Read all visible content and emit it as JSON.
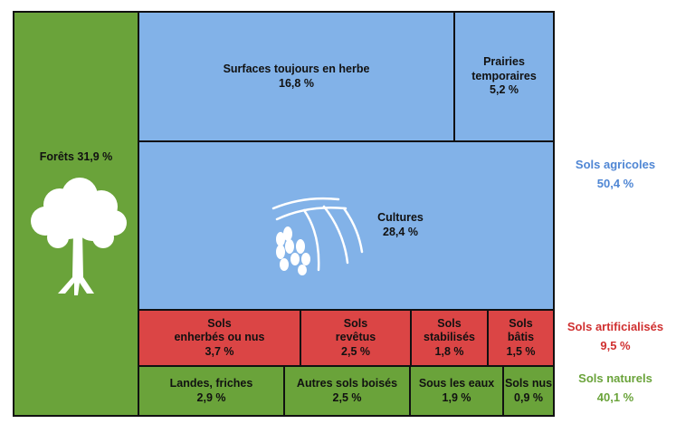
{
  "colors": {
    "forest": "#6aa33a",
    "agri": "#82b2e8",
    "artif": "#db4545",
    "natural_text": "#6aa33a",
    "agri_text": "#4f86d4",
    "artif_text": "#d03030"
  },
  "icons": {
    "tree": "tree-icon",
    "crops": "wheat-field-icon"
  },
  "chart_data": {
    "type": "treemap",
    "unit": "%",
    "cells": [
      {
        "label": "Forêts",
        "value": 31.9,
        "value_text": "Forêts 31,9 %",
        "group": "forests"
      },
      {
        "label": "Surfaces toujours en herbe",
        "value": 16.8,
        "value_text": "16,8 %",
        "group": "agricultural"
      },
      {
        "label": "Prairies\ntemporaires",
        "value": 5.2,
        "value_text": "5,2 %",
        "group": "agricultural"
      },
      {
        "label": "Cultures",
        "value": 28.4,
        "value_text": "28,4 %",
        "group": "agricultural"
      },
      {
        "label": "Sols\nenherbés ou nus",
        "value": 3.7,
        "value_text": "3,7 %",
        "group": "artificial"
      },
      {
        "label": "Sols\nrevêtus",
        "value": 2.5,
        "value_text": "2,5 %",
        "group": "artificial"
      },
      {
        "label": "Sols\nstabilisés",
        "value": 1.8,
        "value_text": "1,8 %",
        "group": "artificial"
      },
      {
        "label": "Sols\nbâtis",
        "value": 1.5,
        "value_text": "1,5 %",
        "group": "artificial"
      },
      {
        "label": "Landes, friches",
        "value": 2.9,
        "value_text": "2,9 %",
        "group": "natural"
      },
      {
        "label": "Autres sols boisés",
        "value": 2.5,
        "value_text": "2,5 %",
        "group": "natural"
      },
      {
        "label": "Sous les eaux",
        "value": 1.9,
        "value_text": "1,9 %",
        "group": "natural"
      },
      {
        "label": "Sols nus",
        "value": 0.9,
        "value_text": "0,9 %",
        "group": "natural"
      }
    ],
    "groups": [
      {
        "label": "Sols agricoles",
        "value": 50.4,
        "value_text": "50,4 %"
      },
      {
        "label": "Sols artificialisés",
        "value": 9.5,
        "value_text": "9,5 %"
      },
      {
        "label": "Sols naturels",
        "value": 40.1,
        "value_text": "40,1 %"
      }
    ]
  }
}
